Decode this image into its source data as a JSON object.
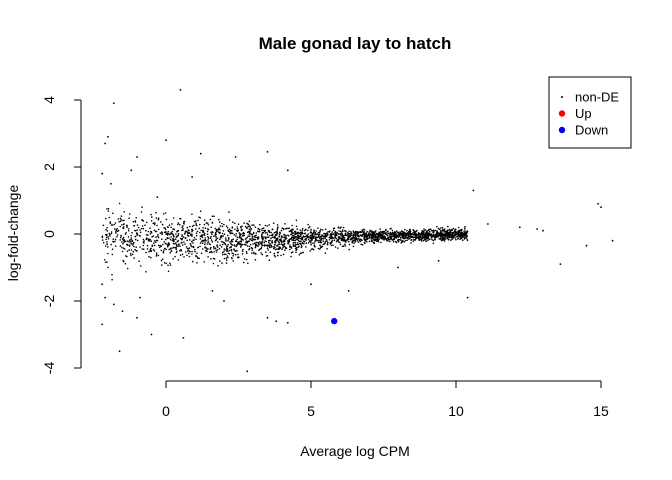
{
  "chart_data": {
    "type": "scatter",
    "title": "Male gonad lay to hatch",
    "xlabel": "Average log CPM",
    "ylabel": "log-fold-change",
    "xlim": [
      -2.3,
      15.5
    ],
    "ylim": [
      -4.2,
      4.5
    ],
    "x_ticks": [
      0,
      5,
      10,
      15
    ],
    "y_ticks": [
      -4,
      -2,
      0,
      2,
      4
    ],
    "grid": false,
    "legend_position": "top-right",
    "legend": [
      {
        "label": "non-DE",
        "color": "#000000",
        "marker": "small-dot"
      },
      {
        "label": "Up",
        "color": "#ff0000",
        "marker": "large-dot"
      },
      {
        "label": "Down",
        "color": "#0000ff",
        "marker": "large-dot"
      }
    ],
    "series": [
      {
        "name": "non-DE",
        "color": "#000000",
        "points": [
          [
            0.5,
            4.3
          ],
          [
            -1.8,
            3.9
          ],
          [
            -2.0,
            2.9
          ],
          [
            3.5,
            2.45
          ],
          [
            -2.1,
            2.7
          ],
          [
            0.0,
            2.8
          ],
          [
            -1.0,
            2.3
          ],
          [
            1.2,
            2.4
          ],
          [
            10.6,
            1.3
          ],
          [
            14.9,
            0.9
          ],
          [
            15.0,
            0.8
          ],
          [
            15.4,
            -0.2
          ],
          [
            14.5,
            -0.35
          ],
          [
            13.6,
            -0.9
          ],
          [
            10.4,
            -1.9
          ],
          [
            3.8,
            -2.6
          ],
          [
            4.2,
            -2.65
          ],
          [
            3.5,
            -2.5
          ],
          [
            -2.2,
            -2.7
          ],
          [
            -1.5,
            -2.3
          ],
          [
            -1.0,
            -2.5
          ],
          [
            -0.5,
            -3.0
          ],
          [
            0.6,
            -3.1
          ],
          [
            -1.6,
            -3.5
          ],
          [
            2.8,
            -4.1
          ],
          [
            -2.1,
            -1.9
          ],
          [
            -1.8,
            -2.1
          ],
          [
            6.3,
            -1.7
          ],
          [
            5.0,
            -1.5
          ],
          [
            8.0,
            -1.0
          ],
          [
            9.4,
            -0.8
          ],
          [
            11.1,
            0.3
          ],
          [
            12.2,
            0.2
          ],
          [
            12.8,
            0.15
          ],
          [
            13.0,
            0.1
          ],
          [
            -2.2,
            1.8
          ],
          [
            -1.9,
            1.5
          ],
          [
            -2.2,
            -1.5
          ],
          [
            -1.2,
            1.9
          ],
          [
            2.4,
            2.3
          ],
          [
            4.2,
            1.9
          ],
          [
            0.9,
            1.7
          ],
          [
            -0.3,
            1.1
          ],
          [
            1.6,
            -1.7
          ],
          [
            -0.9,
            -1.9
          ],
          [
            2.0,
            -2.0
          ]
        ]
      },
      {
        "name": "Down",
        "color": "#0000ff",
        "points": [
          [
            5.8,
            -2.6
          ]
        ]
      }
    ],
    "bulk_cloud": {
      "description_free": true,
      "center_curve": [
        [
          -2.2,
          0.0
        ],
        [
          0.0,
          -0.05
        ],
        [
          4.0,
          -0.15
        ],
        [
          6.0,
          -0.1
        ],
        [
          8.0,
          -0.05
        ],
        [
          10.0,
          0.05
        ]
      ],
      "x_range": [
        -2.2,
        10.4
      ]
    }
  }
}
